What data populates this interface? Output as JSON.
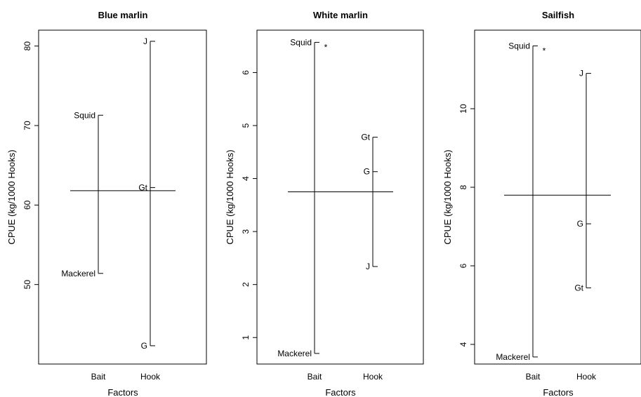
{
  "chart_data": [
    {
      "type": "design-plot",
      "title": "Blue marlin",
      "xlabel": "Factors",
      "ylabel": "CPUE (kg/1000 Hooks)",
      "categories": [
        "Bait",
        "Hook"
      ],
      "ylim": [
        40,
        82
      ],
      "yticks": [
        50,
        60,
        70,
        80
      ],
      "grand_mean": 61.8,
      "factors": [
        {
          "name": "Bait",
          "levels": [
            {
              "label": "Squid",
              "value": 71.3,
              "side": "left"
            },
            {
              "label": "Mackerel",
              "value": 51.4,
              "side": "left"
            }
          ],
          "star": false
        },
        {
          "name": "Hook",
          "levels": [
            {
              "label": "J",
              "value": 80.6,
              "side": "left"
            },
            {
              "label": "Gt",
              "value": 62.2,
              "side": "left"
            },
            {
              "label": "G",
              "value": 42.3,
              "side": "left"
            }
          ],
          "star": false
        }
      ]
    },
    {
      "type": "design-plot",
      "title": "White marlin",
      "xlabel": "Factors",
      "ylabel": "CPUE (kg/1000 Hooks)",
      "categories": [
        "Bait",
        "Hook"
      ],
      "ylim": [
        0.5,
        6.8
      ],
      "yticks": [
        1,
        2,
        3,
        4,
        5,
        6
      ],
      "grand_mean": 3.75,
      "factors": [
        {
          "name": "Bait",
          "levels": [
            {
              "label": "Squid",
              "value": 6.57,
              "side": "left"
            },
            {
              "label": "Mackerel",
              "value": 0.7,
              "side": "left"
            }
          ],
          "star": true
        },
        {
          "name": "Hook",
          "levels": [
            {
              "label": "Gt",
              "value": 4.78,
              "side": "left"
            },
            {
              "label": "G",
              "value": 4.13,
              "side": "left"
            },
            {
              "label": "J",
              "value": 2.34,
              "side": "left"
            }
          ],
          "star": false
        }
      ]
    },
    {
      "type": "design-plot",
      "title": "Sailfish",
      "xlabel": "Factors",
      "ylabel": "CPUE (kg/1000 Hooks)",
      "categories": [
        "Bait",
        "Hook"
      ],
      "ylim": [
        3.5,
        12.0
      ],
      "yticks": [
        4,
        6,
        8,
        10
      ],
      "grand_mean": 7.8,
      "factors": [
        {
          "name": "Bait",
          "levels": [
            {
              "label": "Squid",
              "value": 11.6,
              "side": "left"
            },
            {
              "label": "Mackerel",
              "value": 3.68,
              "side": "left"
            }
          ],
          "star": true
        },
        {
          "name": "Hook",
          "levels": [
            {
              "label": "J",
              "value": 10.9,
              "side": "left"
            },
            {
              "label": "G",
              "value": 7.07,
              "side": "left"
            },
            {
              "label": "Gt",
              "value": 5.44,
              "side": "left"
            }
          ],
          "star": false
        }
      ]
    }
  ],
  "star_symbol": "*"
}
